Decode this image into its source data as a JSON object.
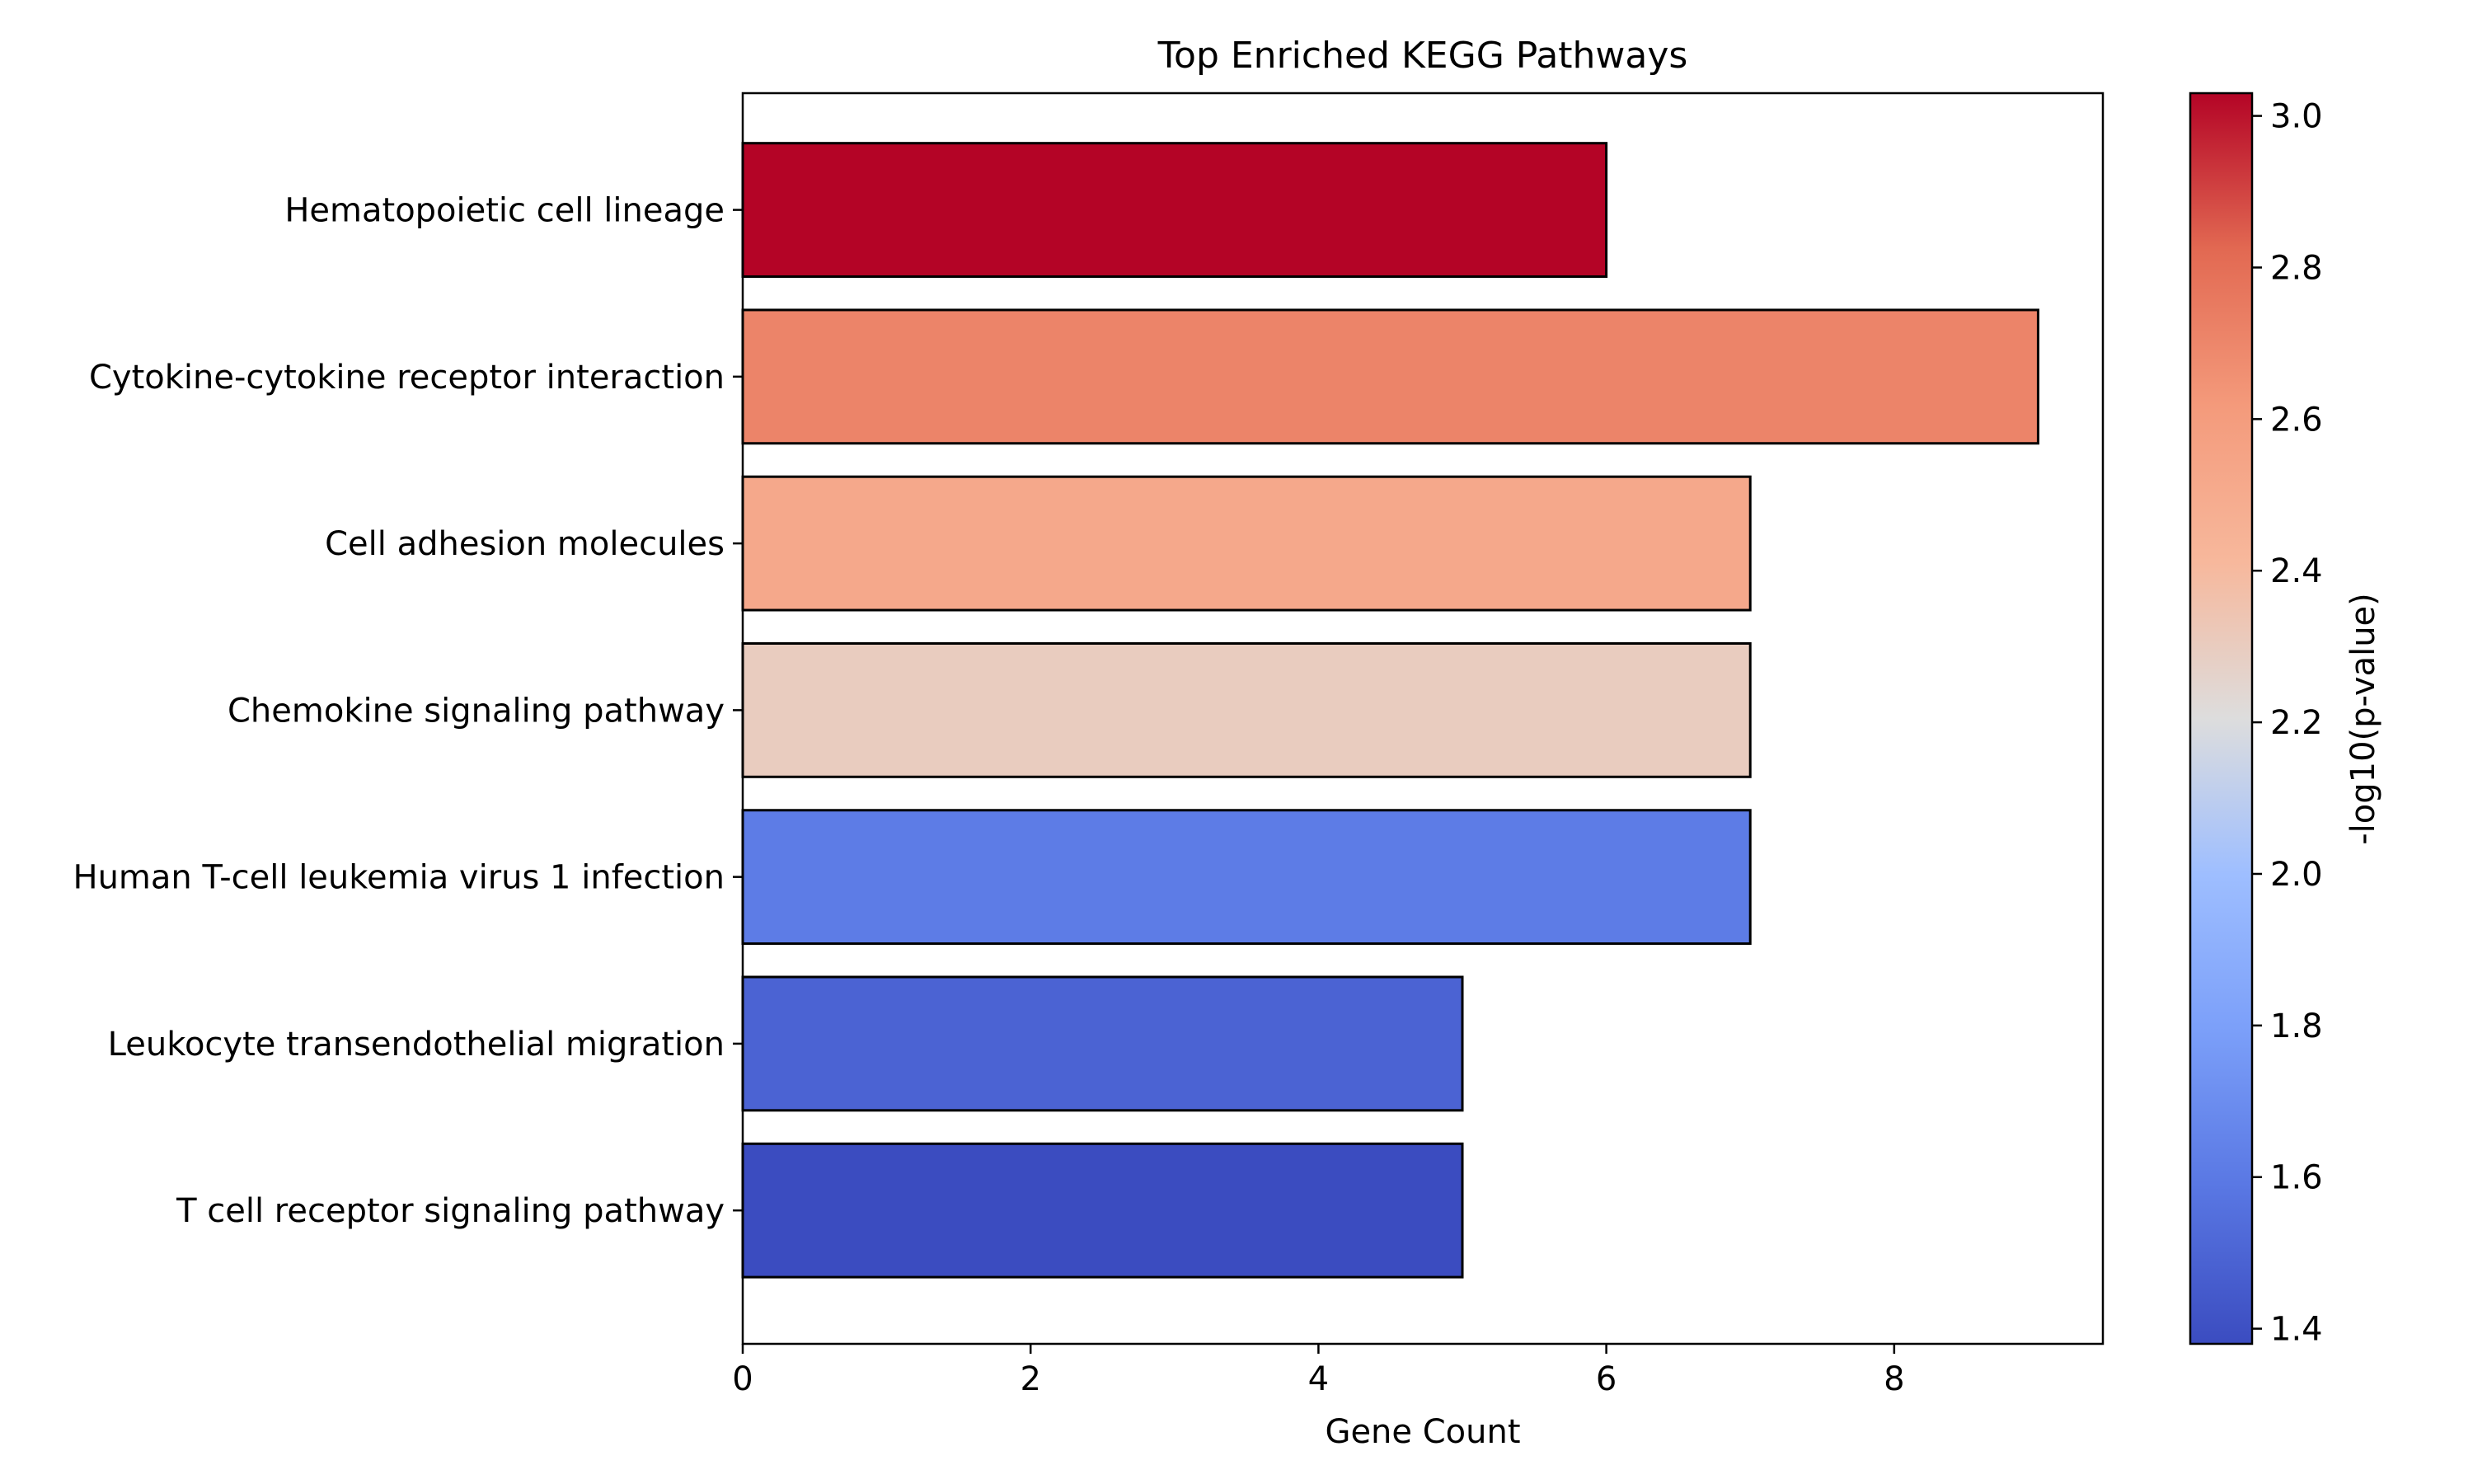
{
  "chart_data": {
    "type": "bar",
    "orientation": "horizontal",
    "title": "Top Enriched KEGG Pathways",
    "xlabel": "Gene Count",
    "ylabel": "",
    "xlim": [
      0,
      9.45
    ],
    "xticks": [
      0,
      2,
      4,
      6,
      8
    ],
    "categories": [
      "Hematopoietic cell lineage",
      "Cytokine-cytokine receptor interaction",
      "Cell adhesion molecules",
      "Chemokine signaling pathway",
      "Human T-cell leukemia virus 1 infection",
      "Leukocyte transendothelial migration",
      "T cell receptor signaling pathway"
    ],
    "values": [
      6,
      9,
      7,
      7,
      7,
      5,
      5
    ],
    "color_values": [
      3.03,
      2.71,
      2.52,
      2.3,
      1.61,
      1.49,
      1.38
    ],
    "colorbar": {
      "label": "-log10(p-value)",
      "range": [
        1.38,
        3.03
      ],
      "ticks": [
        1.4,
        1.6,
        1.8,
        2.0,
        2.2,
        2.4,
        2.6,
        2.8,
        3.0
      ],
      "colormap": "coolwarm"
    },
    "bar_edge_color": "#000000",
    "grid": false,
    "legend": "none"
  }
}
